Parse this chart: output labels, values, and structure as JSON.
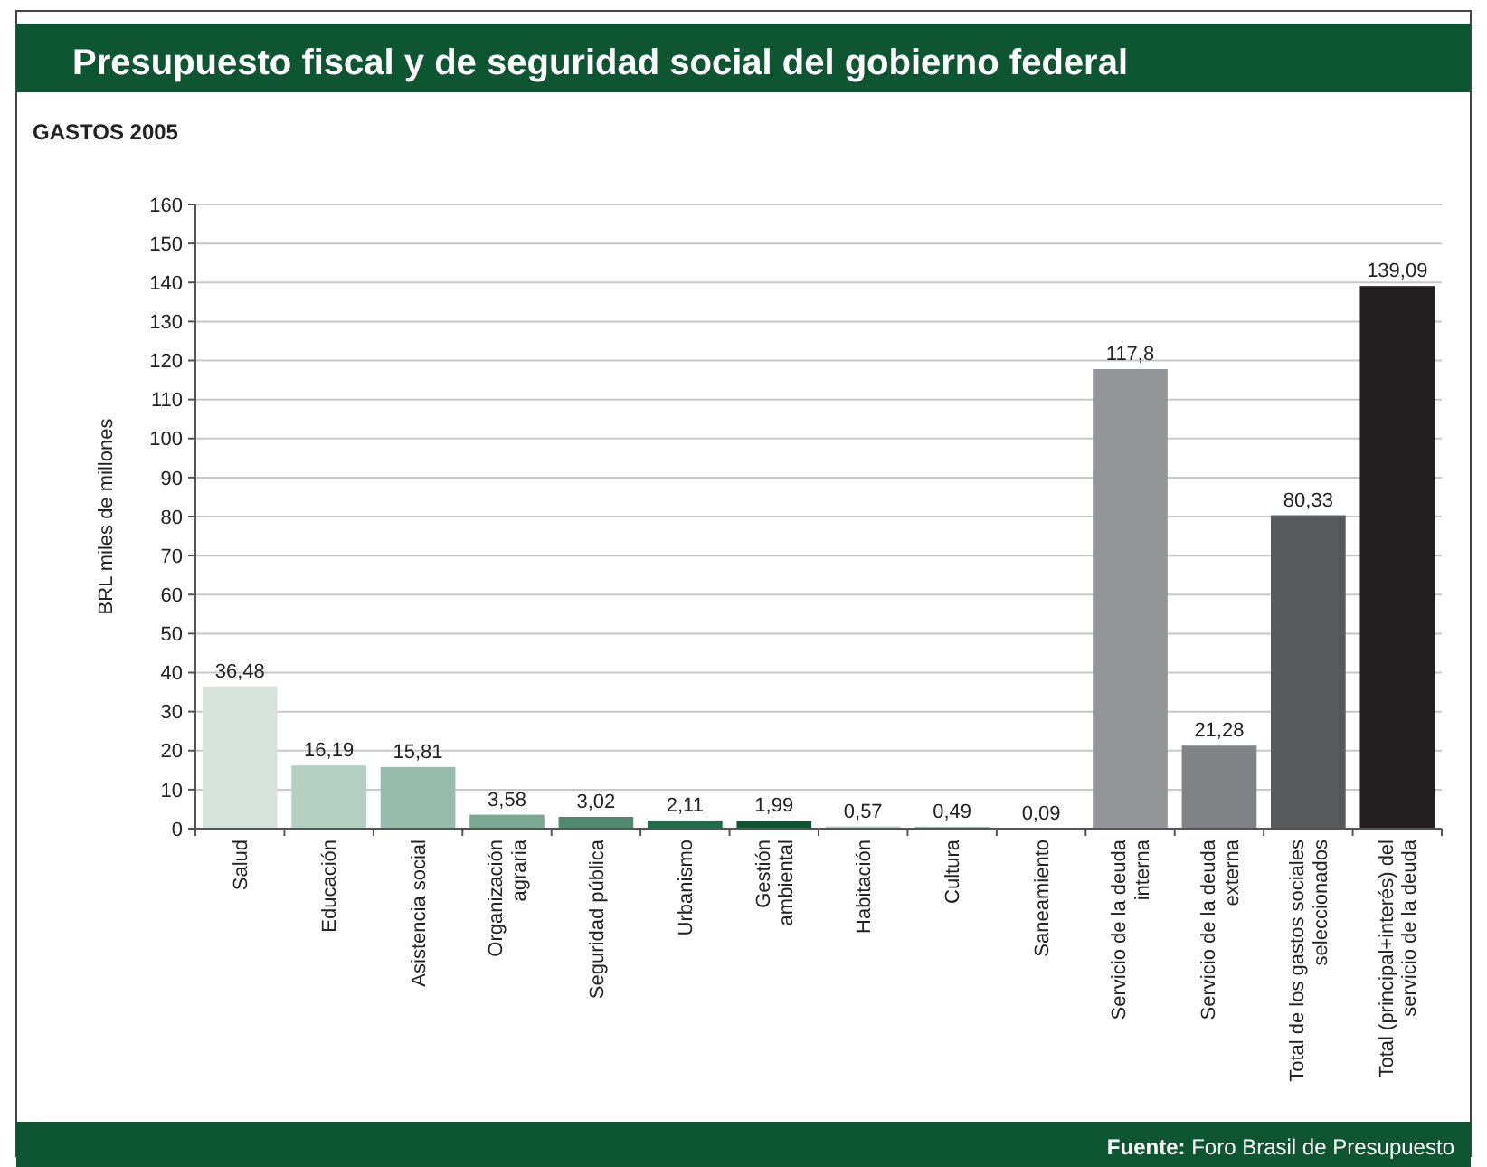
{
  "chart_data": {
    "type": "bar",
    "title": "Presupuesto fiscal y de seguridad social del gobierno federal",
    "subtitle": "GASTOS 2005",
    "ylabel": "BRL miles de millones",
    "categories": [
      "Salud",
      "Educación",
      "Asistencia social",
      "Organización\nagraria",
      "Seguridad pública",
      "Urbanismo",
      "Gestión\nambiental",
      "Habitación",
      "Cultura",
      "Saneamiento",
      "Servicio de la deuda\ninterna",
      "Servicio de la deuda\nexterna",
      "Total de los gastos sociales\nseleccionados",
      "Total (principal+interés) del\nservicio de la deuda"
    ],
    "values": [
      36.48,
      16.19,
      15.81,
      3.58,
      3.02,
      2.11,
      1.99,
      0.57,
      0.49,
      0.09,
      117.8,
      21.28,
      80.33,
      139.09
    ],
    "value_labels": [
      "36,48",
      "16,19",
      "15,81",
      "3,58",
      "3,02",
      "2,11",
      "1,99",
      "0,57",
      "0,49",
      "0,09",
      "117,8",
      "21,28",
      "80,33",
      "139,09"
    ],
    "colors": [
      "#d6e2dc",
      "#b4d0c3",
      "#97bcab",
      "#7aa893",
      "#4f8a70",
      "#1f6b4a",
      "#0e5532",
      "#b4d0c3",
      "#97bcab",
      "#7aa893",
      "#939598",
      "#808285",
      "#58595b",
      "#231f20"
    ],
    "ylim": [
      0,
      160
    ],
    "yticks": [
      0,
      10,
      20,
      30,
      40,
      50,
      60,
      70,
      80,
      90,
      100,
      110,
      120,
      130,
      140,
      150,
      160
    ],
    "grid": "y",
    "annotations": [
      "Fuente: Foro Brasil de Presupuesto"
    ]
  }
}
